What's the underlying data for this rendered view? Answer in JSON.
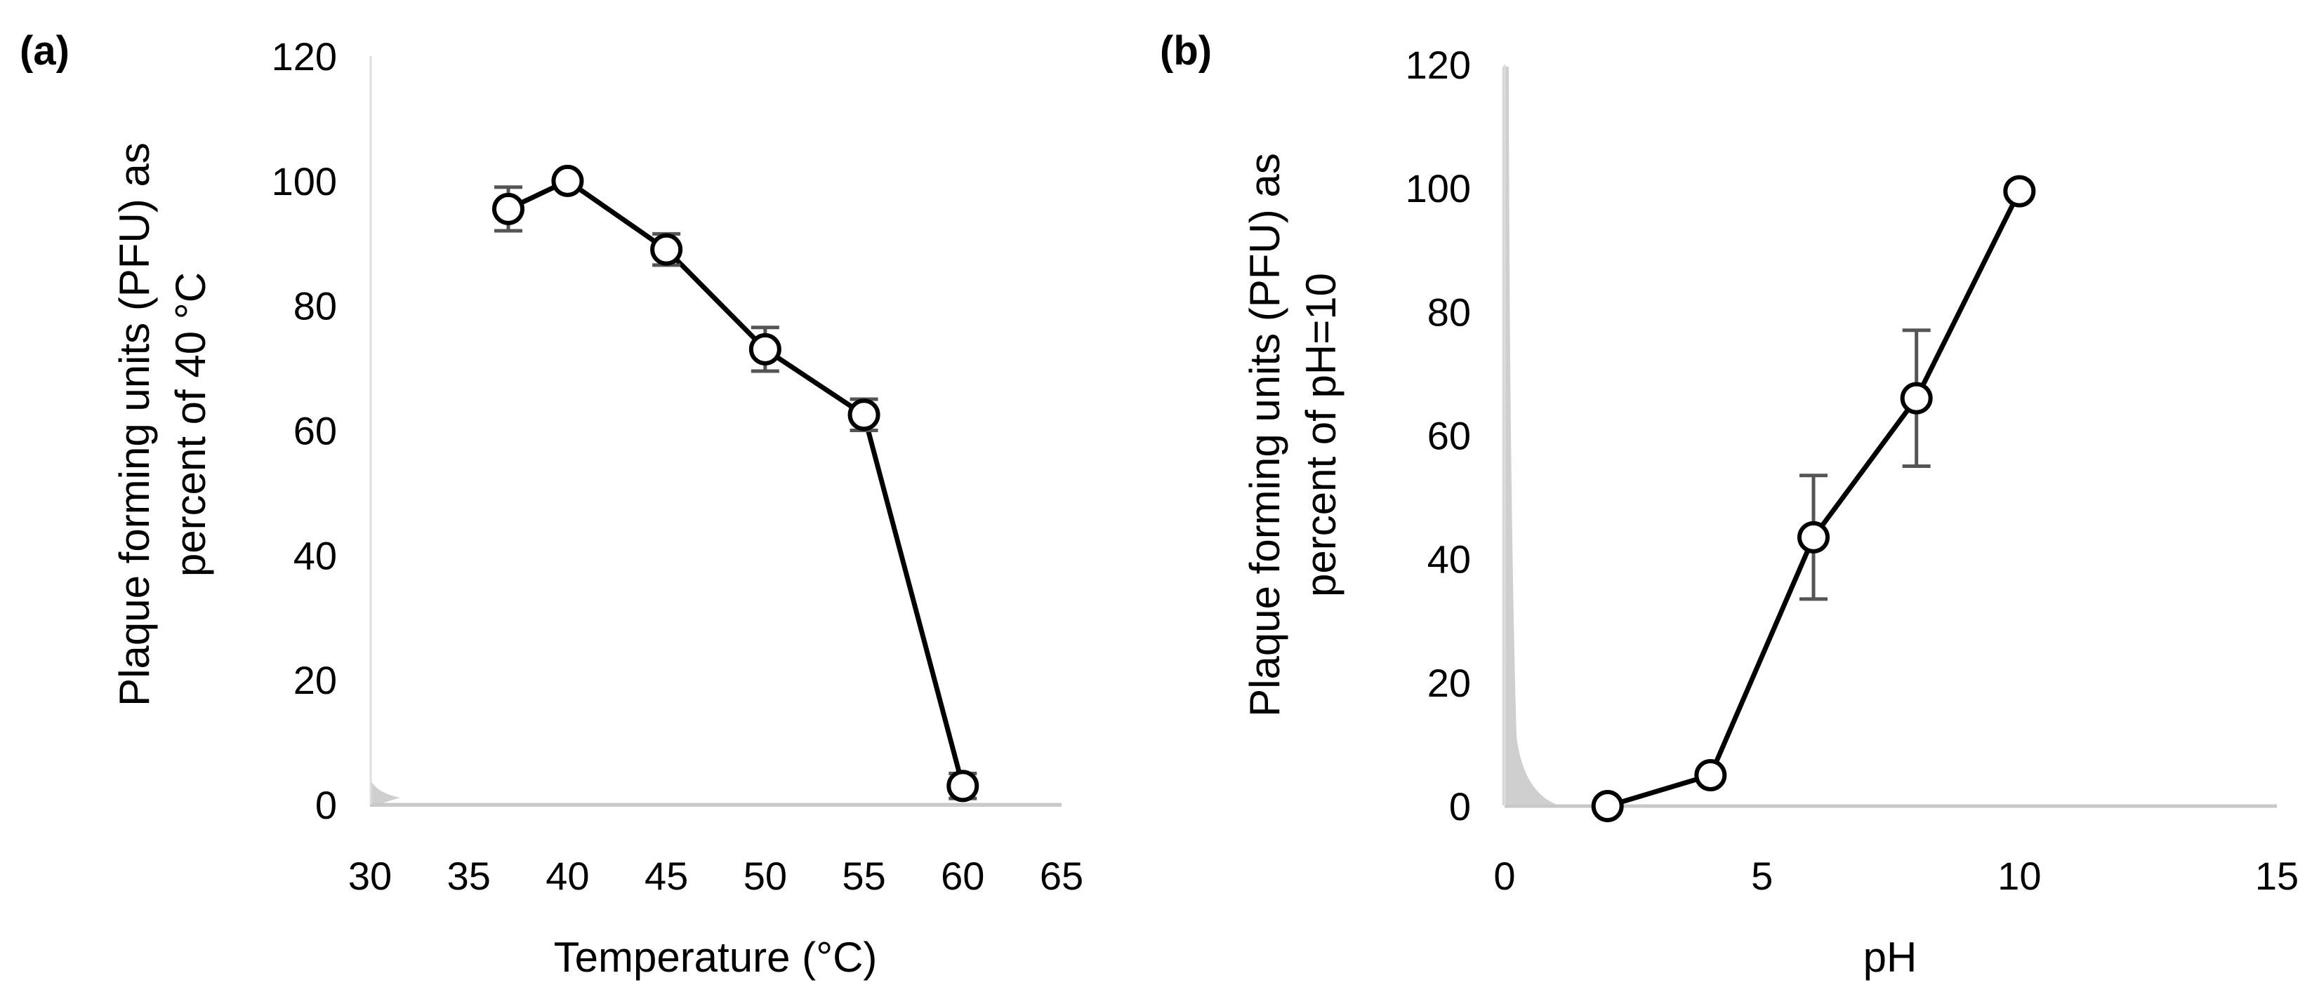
{
  "chart_data": [
    {
      "panel_label": "(a)",
      "type": "line",
      "xlabel": "Temperature (°C)",
      "ylabel_lines": [
        "Plaque forming units (PFU) as",
        "percent of 40 °C"
      ],
      "xlim": [
        30,
        65
      ],
      "ylim": [
        0,
        120
      ],
      "xticks": [
        30,
        35,
        40,
        45,
        50,
        55,
        60,
        65
      ],
      "yticks": [
        0,
        20,
        40,
        60,
        80,
        100,
        120
      ],
      "x": [
        37,
        40,
        45,
        50,
        55,
        60
      ],
      "y": [
        95.5,
        100,
        89,
        73,
        62.5,
        3
      ],
      "error": [
        3.5,
        0,
        2.5,
        3.5,
        2.5,
        2
      ],
      "colors": {
        "line": "#000000",
        "marker_fill": "#ffffff",
        "errorbar": "#555555",
        "axis": "#c8c8c8"
      }
    },
    {
      "panel_label": "(b)",
      "type": "line",
      "xlabel": "pH",
      "ylabel_lines": [
        "Plaque forming units (PFU) as",
        "percent of pH=10"
      ],
      "xlim": [
        0,
        15
      ],
      "ylim": [
        0,
        120
      ],
      "xticks": [
        0,
        5,
        10,
        15
      ],
      "yticks": [
        0,
        20,
        40,
        60,
        80,
        100,
        120
      ],
      "x": [
        2,
        4,
        6,
        8,
        10
      ],
      "y": [
        0,
        5,
        43.5,
        66,
        99.5
      ],
      "error": [
        0,
        1,
        10,
        11,
        0
      ],
      "colors": {
        "line": "#000000",
        "marker_fill": "#ffffff",
        "errorbar": "#555555",
        "axis": "#c8c8c8"
      }
    }
  ]
}
